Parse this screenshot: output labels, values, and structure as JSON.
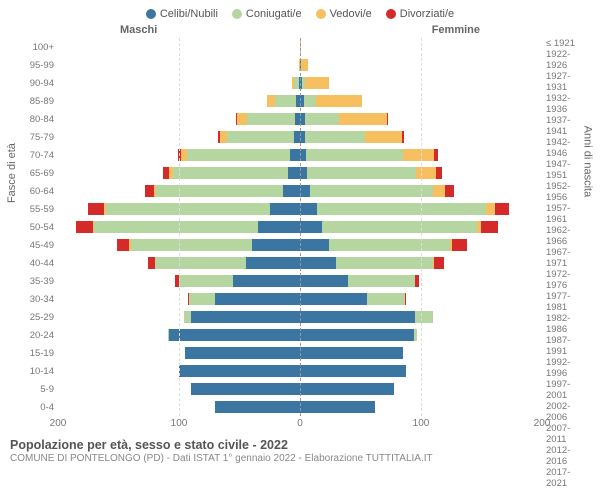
{
  "chart": {
    "type": "population-pyramid",
    "legend": [
      {
        "label": "Celibi/Nubili",
        "color": "#3b76a3"
      },
      {
        "label": "Coniugati/e",
        "color": "#b5d6a1"
      },
      {
        "label": "Vedovi/e",
        "color": "#f6c061"
      },
      {
        "label": "Divorziati/e",
        "color": "#d42a2a"
      }
    ],
    "side_labels": {
      "male": "Maschi",
      "female": "Femmine"
    },
    "y_axis_left_title": "Fasce di età",
    "y_axis_right_title": "Anni di nascita",
    "x_axis": {
      "max": 200,
      "ticks": [
        200,
        100,
        0,
        100,
        200
      ],
      "tick_labels": [
        "200",
        "100",
        "0",
        "100",
        "200"
      ]
    },
    "colors": {
      "grid": "#dddddd",
      "center": "#999999",
      "text": "#666666",
      "background": "#ffffff"
    },
    "age_groups": [
      {
        "age": "100+",
        "birth": "≤ 1921",
        "male": {
          "single": 0,
          "married": 0,
          "widowed": 0,
          "divorced": 0
        },
        "female": {
          "single": 0,
          "married": 0,
          "widowed": 1,
          "divorced": 0
        }
      },
      {
        "age": "95-99",
        "birth": "1922-1926",
        "male": {
          "single": 0,
          "married": 0,
          "widowed": 1,
          "divorced": 0
        },
        "female": {
          "single": 1,
          "married": 0,
          "widowed": 6,
          "divorced": 0
        }
      },
      {
        "age": "90-94",
        "birth": "1927-1931",
        "male": {
          "single": 1,
          "married": 4,
          "widowed": 2,
          "divorced": 0
        },
        "female": {
          "single": 2,
          "married": 2,
          "widowed": 20,
          "divorced": 0
        }
      },
      {
        "age": "85-89",
        "birth": "1932-1936",
        "male": {
          "single": 3,
          "married": 18,
          "widowed": 6,
          "divorced": 0
        },
        "female": {
          "single": 3,
          "married": 10,
          "widowed": 38,
          "divorced": 0
        }
      },
      {
        "age": "80-84",
        "birth": "1937-1941",
        "male": {
          "single": 4,
          "married": 40,
          "widowed": 8,
          "divorced": 1
        },
        "female": {
          "single": 4,
          "married": 28,
          "widowed": 40,
          "divorced": 1
        }
      },
      {
        "age": "75-79",
        "birth": "1942-1946",
        "male": {
          "single": 5,
          "married": 55,
          "widowed": 6,
          "divorced": 2
        },
        "female": {
          "single": 4,
          "married": 50,
          "widowed": 30,
          "divorced": 2
        }
      },
      {
        "age": "70-74",
        "birth": "1947-1951",
        "male": {
          "single": 8,
          "married": 85,
          "widowed": 5,
          "divorced": 3
        },
        "female": {
          "single": 5,
          "married": 80,
          "widowed": 26,
          "divorced": 3
        }
      },
      {
        "age": "65-69",
        "birth": "1952-1956",
        "male": {
          "single": 10,
          "married": 95,
          "widowed": 3,
          "divorced": 5
        },
        "female": {
          "single": 6,
          "married": 90,
          "widowed": 16,
          "divorced": 5
        }
      },
      {
        "age": "60-64",
        "birth": "1957-1961",
        "male": {
          "single": 14,
          "married": 105,
          "widowed": 2,
          "divorced": 7
        },
        "female": {
          "single": 8,
          "married": 102,
          "widowed": 10,
          "divorced": 7
        }
      },
      {
        "age": "55-59",
        "birth": "1962-1966",
        "male": {
          "single": 25,
          "married": 135,
          "widowed": 2,
          "divorced": 13
        },
        "female": {
          "single": 14,
          "married": 140,
          "widowed": 7,
          "divorced": 12
        }
      },
      {
        "age": "50-54",
        "birth": "1967-1971",
        "male": {
          "single": 35,
          "married": 135,
          "widowed": 1,
          "divorced": 14
        },
        "female": {
          "single": 18,
          "married": 128,
          "widowed": 4,
          "divorced": 14
        }
      },
      {
        "age": "45-49",
        "birth": "1972-1976",
        "male": {
          "single": 40,
          "married": 100,
          "widowed": 1,
          "divorced": 10
        },
        "female": {
          "single": 24,
          "married": 100,
          "widowed": 2,
          "divorced": 12
        }
      },
      {
        "age": "40-44",
        "birth": "1977-1981",
        "male": {
          "single": 45,
          "married": 75,
          "widowed": 0,
          "divorced": 6
        },
        "female": {
          "single": 30,
          "married": 80,
          "widowed": 1,
          "divorced": 8
        }
      },
      {
        "age": "35-39",
        "birth": "1982-1986",
        "male": {
          "single": 55,
          "married": 45,
          "widowed": 0,
          "divorced": 3
        },
        "female": {
          "single": 40,
          "married": 55,
          "widowed": 0,
          "divorced": 3
        }
      },
      {
        "age": "30-34",
        "birth": "1987-1991",
        "male": {
          "single": 70,
          "married": 22,
          "widowed": 0,
          "divorced": 1
        },
        "female": {
          "single": 55,
          "married": 32,
          "widowed": 0,
          "divorced": 1
        }
      },
      {
        "age": "25-29",
        "birth": "1992-1996",
        "male": {
          "single": 90,
          "married": 6,
          "widowed": 0,
          "divorced": 0
        },
        "female": {
          "single": 95,
          "married": 15,
          "widowed": 0,
          "divorced": 0
        }
      },
      {
        "age": "20-24",
        "birth": "1997-2001",
        "male": {
          "single": 108,
          "married": 1,
          "widowed": 0,
          "divorced": 0
        },
        "female": {
          "single": 94,
          "married": 3,
          "widowed": 0,
          "divorced": 0
        }
      },
      {
        "age": "15-19",
        "birth": "2002-2006",
        "male": {
          "single": 95,
          "married": 0,
          "widowed": 0,
          "divorced": 0
        },
        "female": {
          "single": 85,
          "married": 0,
          "widowed": 0,
          "divorced": 0
        }
      },
      {
        "age": "10-14",
        "birth": "2007-2011",
        "male": {
          "single": 100,
          "married": 0,
          "widowed": 0,
          "divorced": 0
        },
        "female": {
          "single": 88,
          "married": 0,
          "widowed": 0,
          "divorced": 0
        }
      },
      {
        "age": "5-9",
        "birth": "2012-2016",
        "male": {
          "single": 90,
          "married": 0,
          "widowed": 0,
          "divorced": 0
        },
        "female": {
          "single": 78,
          "married": 0,
          "widowed": 0,
          "divorced": 0
        }
      },
      {
        "age": "0-4",
        "birth": "2017-2021",
        "male": {
          "single": 70,
          "married": 0,
          "widowed": 0,
          "divorced": 0
        },
        "female": {
          "single": 62,
          "married": 0,
          "widowed": 0,
          "divorced": 0
        }
      }
    ],
    "styling": {
      "bar_height_pct": 70,
      "font_size_labels": 10,
      "font_size_legend": 11
    }
  },
  "footer": {
    "title": "Popolazione per età, sesso e stato civile - 2022",
    "subtitle": "COMUNE DI PONTELONGO (PD) - Dati ISTAT 1° gennaio 2022 - Elaborazione TUTTITALIA.IT"
  }
}
